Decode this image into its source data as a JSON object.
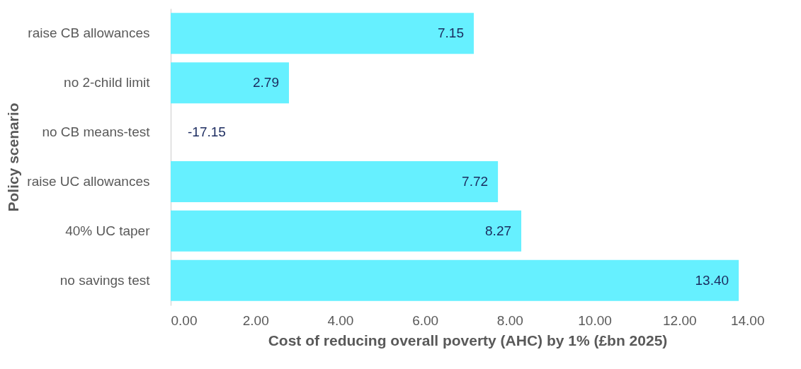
{
  "chart_data": {
    "type": "bar",
    "orientation": "horizontal",
    "ylabel": "Policy scenario",
    "xlabel": "Cost of reducing overall poverty (AHC) by 1% (£bn 2025)",
    "categories": [
      "raise CB allowances",
      "no 2-child limit",
      "no CB means-test",
      "raise UC allowances",
      "40% UC taper",
      "no savings test"
    ],
    "values": [
      7.15,
      2.79,
      null,
      7.72,
      8.27,
      13.4
    ],
    "value_labels": [
      "7.15",
      "2.79",
      "-17.15",
      "7.72",
      "8.27",
      "13.40"
    ],
    "color": "#66f0ff",
    "xlim": [
      0,
      14
    ],
    "xticks": [
      {
        "value": 0,
        "label": "0.00"
      },
      {
        "value": 2,
        "label": "2.00"
      },
      {
        "value": 4,
        "label": "4.00"
      },
      {
        "value": 6,
        "label": "6.00"
      },
      {
        "value": 8,
        "label": "8.00"
      },
      {
        "value": 10,
        "label": "10.00"
      },
      {
        "value": 12,
        "label": "12.00"
      },
      {
        "value": 14,
        "label": "14.00"
      }
    ],
    "grid": false
  }
}
